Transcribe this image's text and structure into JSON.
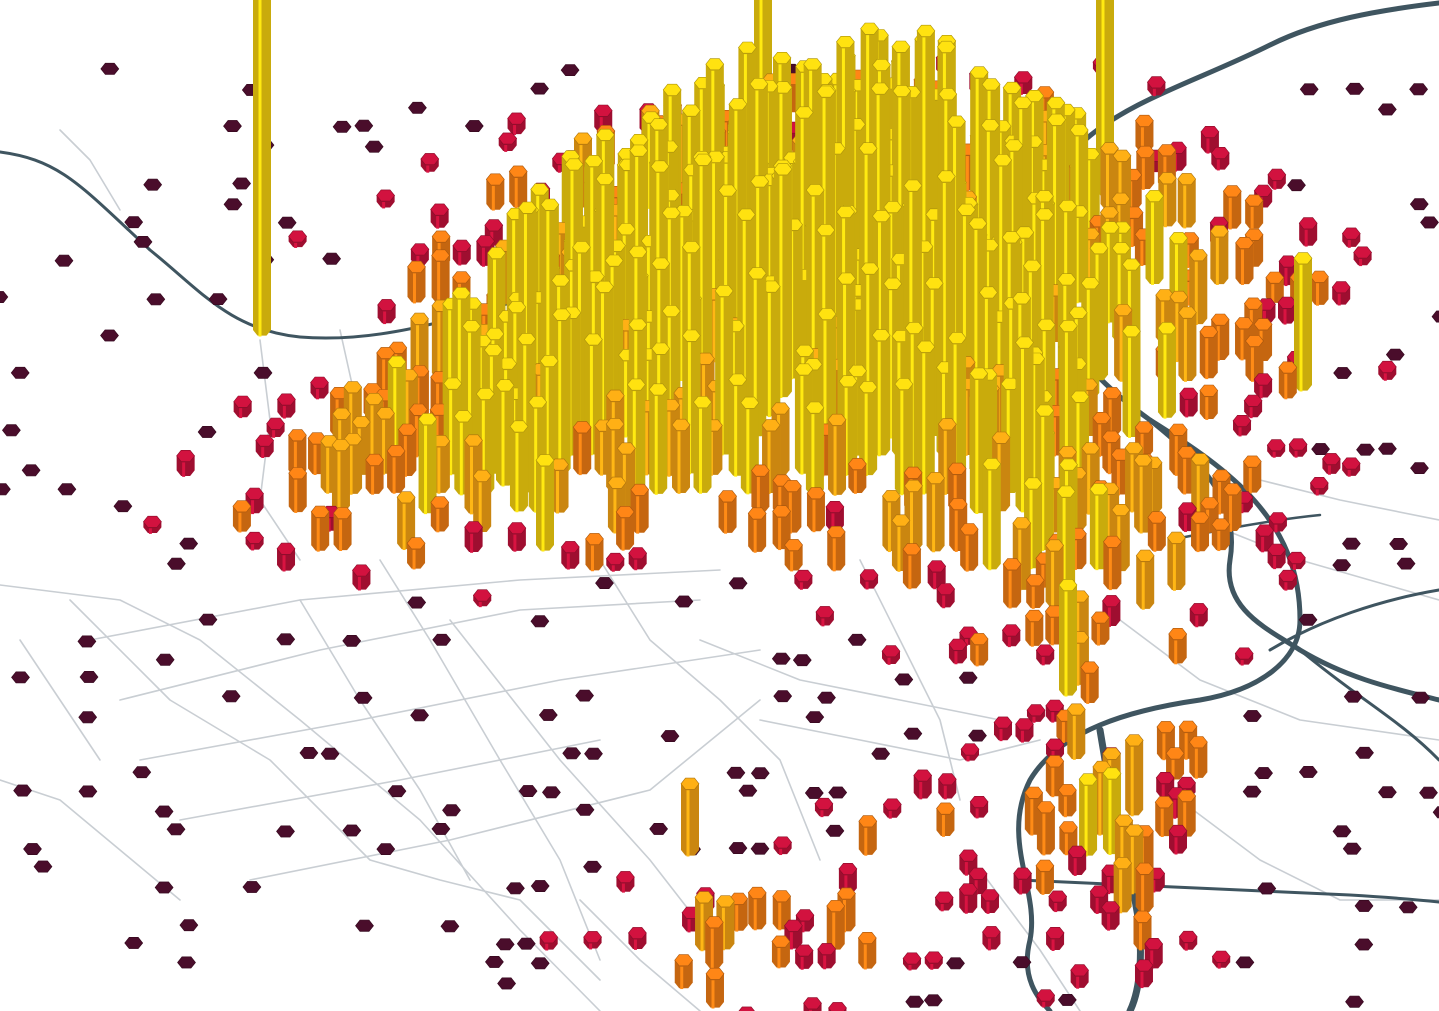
{
  "map": {
    "style": "3d-hexbin-density",
    "background_color": "#ffffff",
    "road_color": "#c9ced3",
    "highway_color": "#3f5560",
    "color_scale": [
      "#4a0d2b",
      "#c2113a",
      "#f07c14",
      "#f6a313",
      "#f5d10f"
    ],
    "visible_text": []
  }
}
